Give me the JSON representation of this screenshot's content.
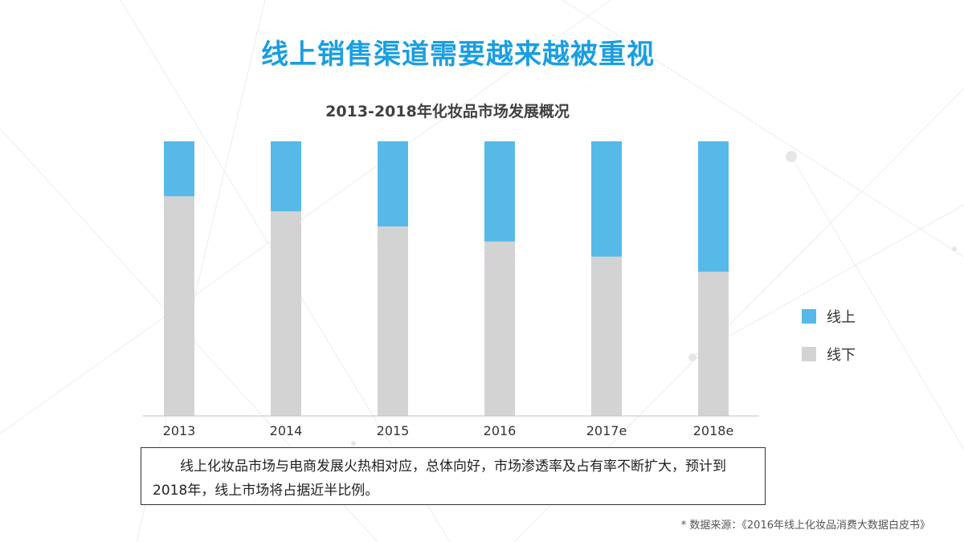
{
  "header": {
    "title": "线上销售渠道需要越来越被重视",
    "title_color": "#1a9ee0"
  },
  "chart_data": {
    "type": "bar",
    "stacked": true,
    "percent_stacked": true,
    "title": "2013-2018年化妆品市场发展概况",
    "categories": [
      "2013",
      "2014",
      "2015",
      "2016",
      "2017e",
      "2018e"
    ],
    "series": [
      {
        "name": "线上",
        "color": "#56b9e8",
        "values": [
          0.2,
          0.255,
          0.31,
          0.365,
          0.42,
          0.475
        ]
      },
      {
        "name": "线下",
        "color": "#d3d3d3",
        "values": [
          0.8,
          0.745,
          0.69,
          0.635,
          0.58,
          0.525
        ]
      }
    ],
    "ylim": [
      0,
      1
    ],
    "grid": false,
    "legend_position": "right"
  },
  "note": {
    "text": "线上化妆品市场与电商发展火热相对应，总体向好，市场渗透率及占有率不断扩大，预计到2018年，线上市场将占据近半比例。"
  },
  "footer": {
    "source": "* 数据来源：《2016年线上化妆品消费大数据白皮书》"
  }
}
